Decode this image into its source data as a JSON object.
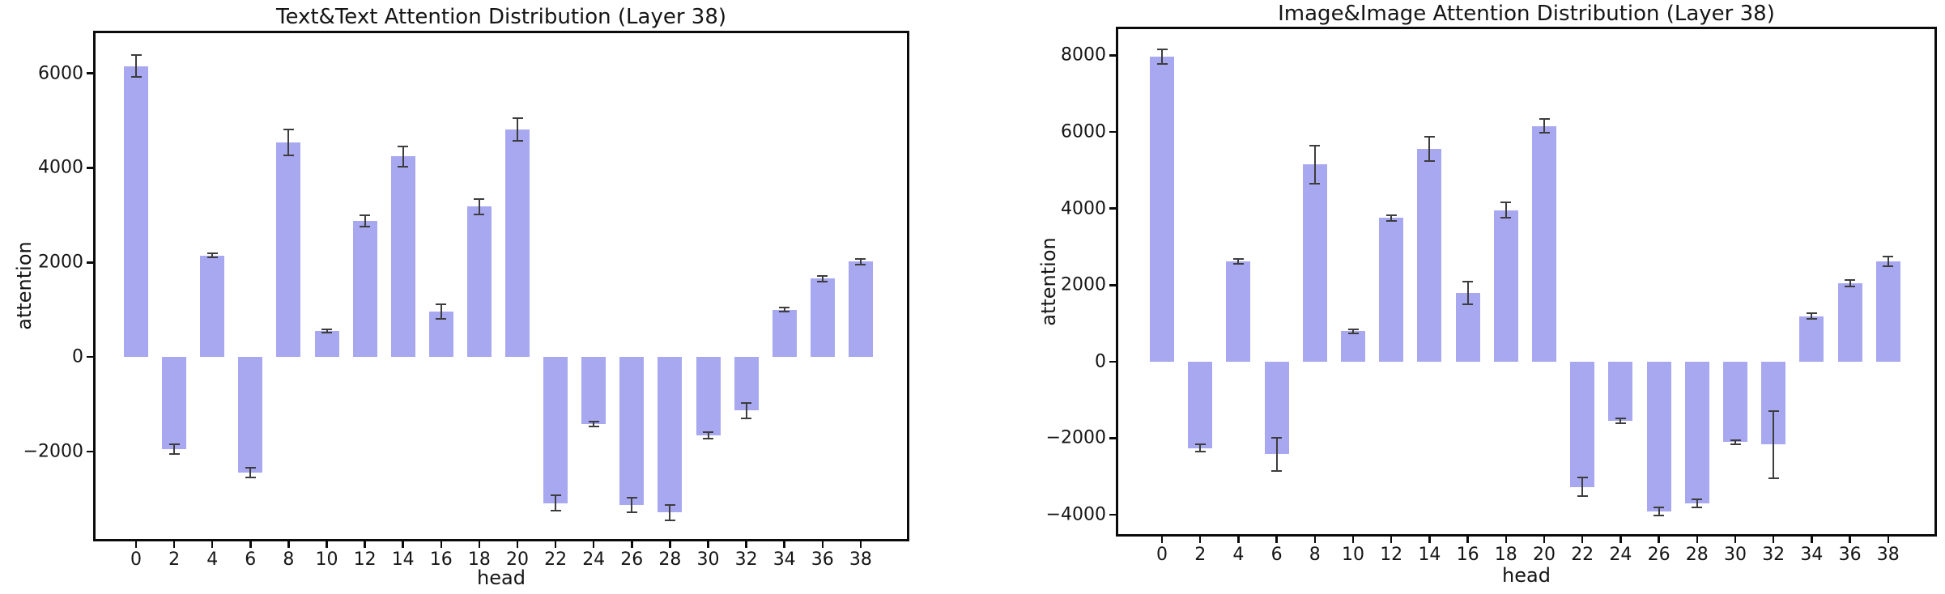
{
  "figure": {
    "background": "#ffffff",
    "bar_color": "#a8a8f0",
    "error_color": "#3d3d3d",
    "spine_color": "#0b0b0b"
  },
  "chart_data": [
    {
      "type": "bar",
      "title": "Text&Text Attention Distribution (Layer 38)",
      "xlabel": "head",
      "ylabel": "attention",
      "categories": [
        "0",
        "2",
        "4",
        "6",
        "8",
        "10",
        "12",
        "14",
        "16",
        "18",
        "20",
        "22",
        "24",
        "26",
        "28",
        "30",
        "32",
        "34",
        "36",
        "38"
      ],
      "values": [
        6150,
        -1950,
        2150,
        -2450,
        4540,
        550,
        2870,
        4240,
        960,
        3180,
        4820,
        -3090,
        -1420,
        -3130,
        -3290,
        -1660,
        -1130,
        1000,
        1660,
        2020
      ],
      "errors": [
        230,
        100,
        50,
        100,
        270,
        40,
        120,
        210,
        150,
        160,
        240,
        160,
        50,
        150,
        160,
        70,
        160,
        40,
        60,
        60
      ],
      "yticks": [
        6000,
        4000,
        2000,
        0,
        -2000
      ],
      "ylim": [
        -3900,
        6900
      ],
      "grid": false,
      "legend": null
    },
    {
      "type": "bar",
      "title": "Image&Image Attention Distribution (Layer 38)",
      "xlabel": "head",
      "ylabel": "attention",
      "categories": [
        "0",
        "2",
        "4",
        "6",
        "8",
        "10",
        "12",
        "14",
        "16",
        "18",
        "20",
        "22",
        "24",
        "26",
        "28",
        "30",
        "32",
        "34",
        "36",
        "38"
      ],
      "values": [
        7970,
        -2260,
        2620,
        -2420,
        5150,
        790,
        3750,
        5550,
        1790,
        3960,
        6160,
        -3270,
        -1550,
        -3920,
        -3700,
        -2100,
        -2170,
        1190,
        2050,
        2620
      ],
      "errors": [
        190,
        100,
        70,
        430,
        500,
        50,
        80,
        320,
        300,
        210,
        190,
        250,
        60,
        110,
        110,
        50,
        870,
        80,
        90,
        130
      ],
      "yticks": [
        8000,
        6000,
        4000,
        2000,
        0,
        -2000,
        -4000
      ],
      "ylim": [
        -4570,
        8750
      ],
      "grid": false,
      "legend": null
    }
  ]
}
